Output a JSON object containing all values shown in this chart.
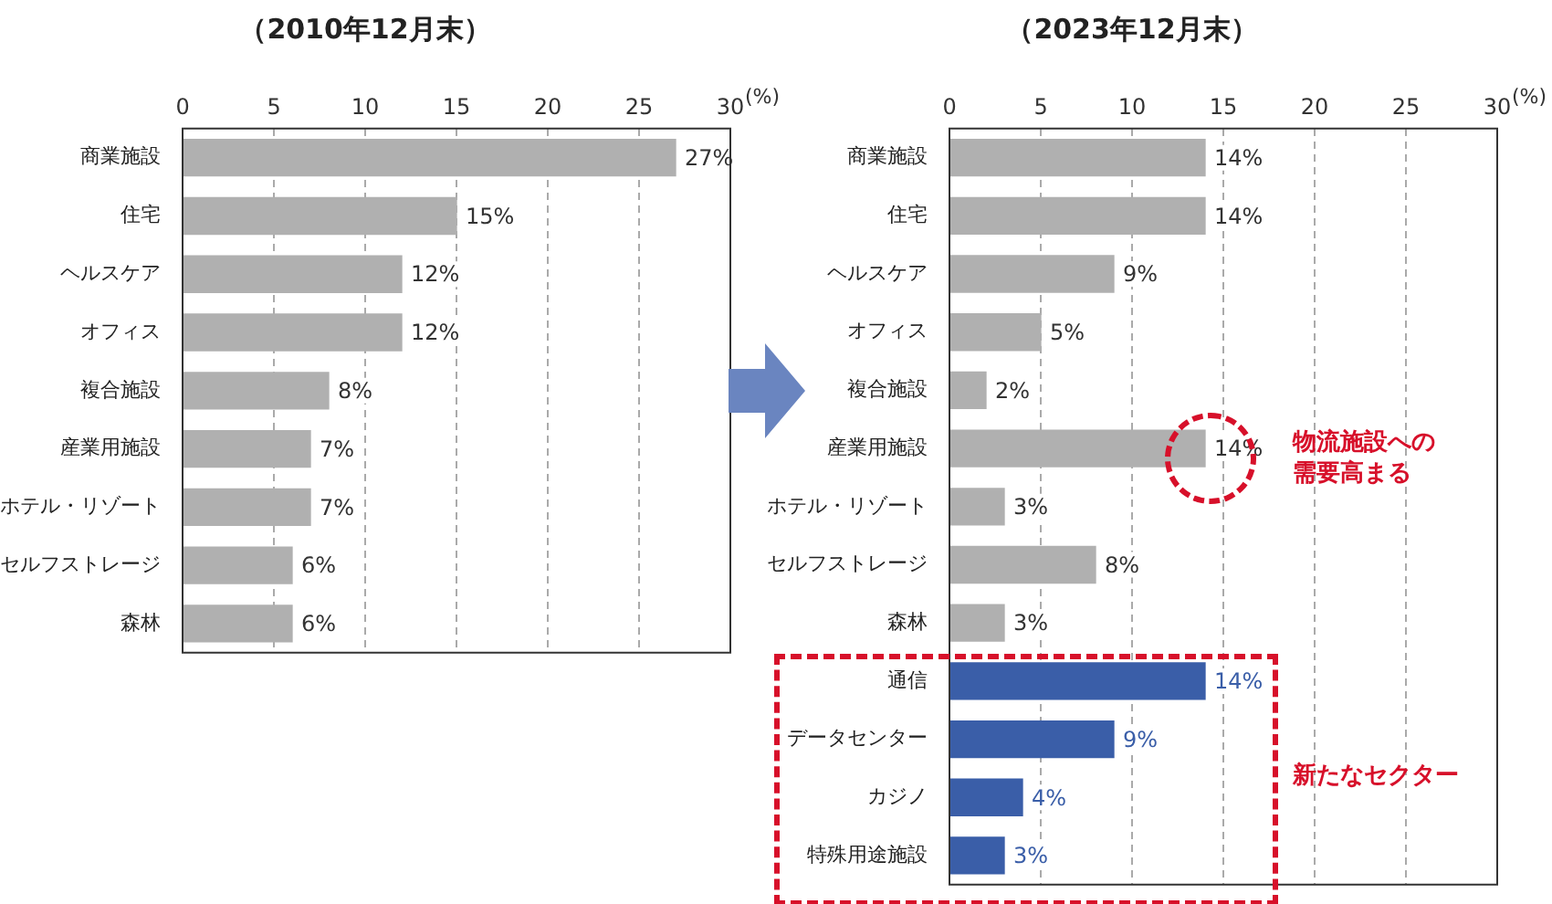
{
  "chart_data": [
    {
      "type": "bar",
      "orientation": "horizontal",
      "title": "（2010年12月末）",
      "xlabel": "(%)",
      "categories": [
        "商業施設",
        "住宅",
        "ヘルスケア",
        "オフィス",
        "複合施設",
        "産業用施設",
        "ホテル・リゾート",
        "セルフストレージ",
        "森林"
      ],
      "values": [
        27,
        15,
        12,
        12,
        8,
        7,
        7,
        6,
        6
      ],
      "colors": [
        "#b0b0b0",
        "#b0b0b0",
        "#b0b0b0",
        "#b0b0b0",
        "#b0b0b0",
        "#b0b0b0",
        "#b0b0b0",
        "#b0b0b0",
        "#b0b0b0"
      ],
      "value_labels": [
        "27%",
        "15%",
        "12%",
        "12%",
        "8%",
        "7%",
        "7%",
        "6%",
        "6%"
      ],
      "xlim": [
        0,
        30
      ],
      "xticks": [
        0,
        5,
        10,
        15,
        20,
        25,
        30
      ],
      "grid": "x"
    },
    {
      "type": "bar",
      "orientation": "horizontal",
      "title": "（2023年12月末）",
      "xlabel": "(%)",
      "categories": [
        "商業施設",
        "住宅",
        "ヘルスケア",
        "オフィス",
        "複合施設",
        "産業用施設",
        "ホテル・リゾート",
        "セルフストレージ",
        "森林",
        "通信",
        "データセンター",
        "カジノ",
        "特殊用途施設"
      ],
      "values": [
        14,
        14,
        9,
        5,
        2,
        14,
        3,
        8,
        3,
        14,
        9,
        4,
        3
      ],
      "colors": [
        "#b0b0b0",
        "#b0b0b0",
        "#b0b0b0",
        "#b0b0b0",
        "#b0b0b0",
        "#b0b0b0",
        "#b0b0b0",
        "#b0b0b0",
        "#b0b0b0",
        "#3a5ea8",
        "#3a5ea8",
        "#3a5ea8",
        "#3a5ea8"
      ],
      "value_labels": [
        "14%",
        "14%",
        "9%",
        "5%",
        "2%",
        "14%",
        "3%",
        "8%",
        "3%",
        "14%",
        "9%",
        "4%",
        "3%"
      ],
      "xlim": [
        0,
        30
      ],
      "xticks": [
        0,
        5,
        10,
        15,
        20,
        25,
        30
      ],
      "grid": "x",
      "annotations": [
        "物流施設への需要高まる",
        "新たなセクター"
      ]
    }
  ]
}
